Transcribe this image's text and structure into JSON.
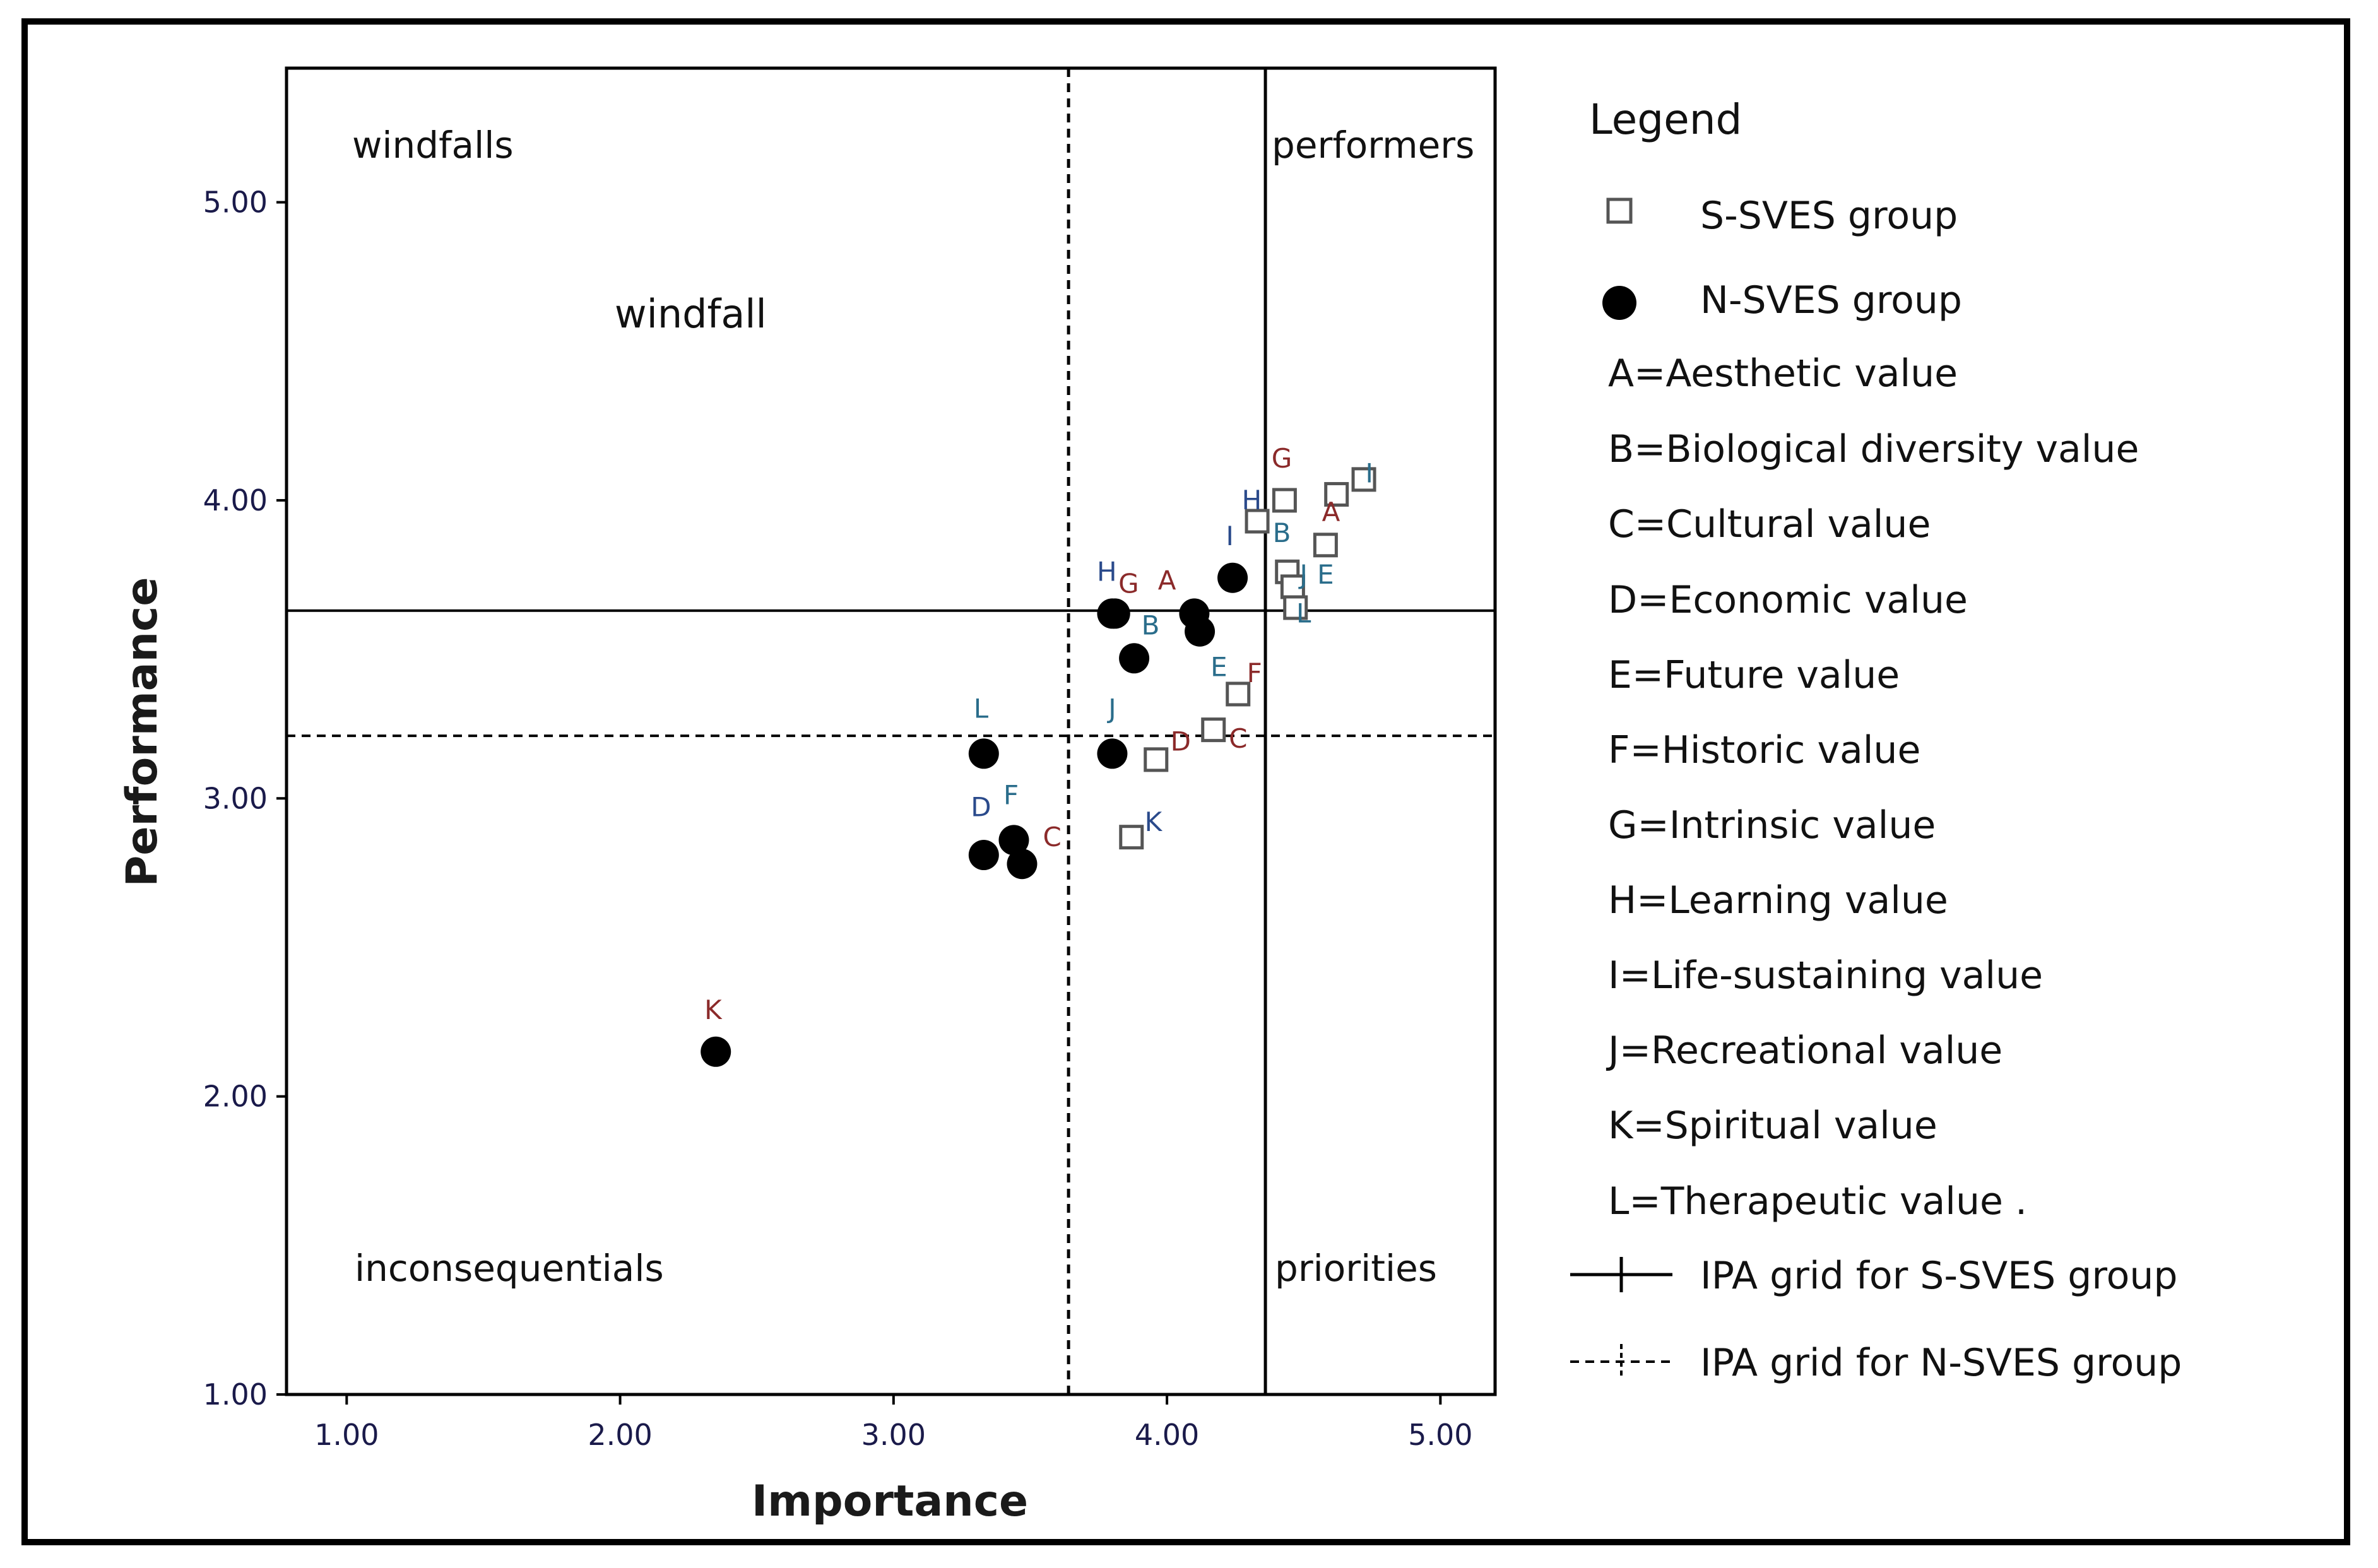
{
  "chart_data": {
    "type": "scatter",
    "title": "",
    "xlabel": "Importance",
    "ylabel": "Performance",
    "xlim": [
      0.78,
      5.2
    ],
    "ylim": [
      1.0,
      5.45
    ],
    "xticks": [
      1.0,
      2.0,
      3.0,
      4.0,
      5.0
    ],
    "yticks": [
      1.0,
      2.0,
      3.0,
      4.0,
      5.0
    ],
    "xtick_labels": [
      "1.00",
      "2.00",
      "3.00",
      "4.00",
      "5.00"
    ],
    "ytick_labels": [
      "1.00",
      "2.00",
      "3.00",
      "4.00",
      "5.00"
    ],
    "grid": false,
    "quadrant_labels": {
      "top_left": "windfalls",
      "top_right": "performers",
      "bottom_left": "inconsequentials",
      "bottom_right": "priorities"
    },
    "annotations": [
      {
        "text": "windfall",
        "x": 1.98,
        "y": 4.58
      }
    ],
    "reference_lines": [
      {
        "name": "IPA grid for S-SVES group",
        "style": "solid",
        "x": 4.36,
        "y": 3.63
      },
      {
        "name": "IPA grid for N-SVES group",
        "style": "dashed",
        "x": 3.64,
        "y": 3.21
      }
    ],
    "series": [
      {
        "name": "S-SVES group",
        "marker": "square",
        "points": [
          {
            "label": "A",
            "x": 4.62,
            "y": 4.02
          },
          {
            "label": "B",
            "x": 4.44,
            "y": 3.76
          },
          {
            "label": "C",
            "x": 4.17,
            "y": 3.23
          },
          {
            "label": "D",
            "x": 3.96,
            "y": 3.13
          },
          {
            "label": "E",
            "x": 4.58,
            "y": 3.85
          },
          {
            "label": "F",
            "x": 4.26,
            "y": 3.35
          },
          {
            "label": "G",
            "x": 4.43,
            "y": 4.0
          },
          {
            "label": "H",
            "x": 4.33,
            "y": 3.93
          },
          {
            "label": "I",
            "x": 4.72,
            "y": 4.07
          },
          {
            "label": "J",
            "x": 4.46,
            "y": 3.71
          },
          {
            "label": "K",
            "x": 3.87,
            "y": 2.87
          },
          {
            "label": "L",
            "x": 4.47,
            "y": 3.64
          }
        ]
      },
      {
        "name": "N-SVES group",
        "marker": "circle",
        "points": [
          {
            "label": "A",
            "x": 4.1,
            "y": 3.62
          },
          {
            "label": "B",
            "x": 3.88,
            "y": 3.47
          },
          {
            "label": "C",
            "x": 3.47,
            "y": 2.78
          },
          {
            "label": "D",
            "x": 3.33,
            "y": 2.81
          },
          {
            "label": "E",
            "x": 4.12,
            "y": 3.56
          },
          {
            "label": "F",
            "x": 3.44,
            "y": 2.86
          },
          {
            "label": "G",
            "x": 3.81,
            "y": 3.62
          },
          {
            "label": "H",
            "x": 3.8,
            "y": 3.62
          },
          {
            "label": "I",
            "x": 4.24,
            "y": 3.74
          },
          {
            "label": "J",
            "x": 3.8,
            "y": 3.15
          },
          {
            "label": "K",
            "x": 2.35,
            "y": 2.15
          },
          {
            "label": "L",
            "x": 3.33,
            "y": 3.15
          }
        ]
      }
    ],
    "point_labels": [
      {
        "text": "G",
        "x": 4.42,
        "y": 4.11,
        "color": "#8b2a2a"
      },
      {
        "text": "I",
        "x": 4.74,
        "y": 4.06,
        "color": "#2a6d8b"
      },
      {
        "text": "H",
        "x": 4.31,
        "y": 3.97,
        "color": "#2a4a8b"
      },
      {
        "text": "A",
        "x": 4.6,
        "y": 3.93,
        "color": "#8b2a2a"
      },
      {
        "text": "B",
        "x": 4.42,
        "y": 3.86,
        "color": "#2a6d8b"
      },
      {
        "text": "E",
        "x": 4.58,
        "y": 3.72,
        "color": "#2a6d8b"
      },
      {
        "text": "J",
        "x": 4.5,
        "y": 3.72,
        "color": "#2a6d8b"
      },
      {
        "text": "L",
        "x": 4.5,
        "y": 3.59,
        "color": "#2a6d8b"
      },
      {
        "text": "I",
        "x": 4.23,
        "y": 3.85,
        "color": "#2a4a8b"
      },
      {
        "text": "H",
        "x": 3.78,
        "y": 3.73,
        "color": "#2a4a8b"
      },
      {
        "text": "G",
        "x": 3.86,
        "y": 3.69,
        "color": "#8b2a2a"
      },
      {
        "text": "A",
        "x": 4.0,
        "y": 3.7,
        "color": "#8b2a2a"
      },
      {
        "text": "B",
        "x": 3.94,
        "y": 3.55,
        "color": "#2a6d8b"
      },
      {
        "text": "E",
        "x": 4.19,
        "y": 3.41,
        "color": "#2a6d8b"
      },
      {
        "text": "F",
        "x": 4.32,
        "y": 3.39,
        "color": "#8b2a2a"
      },
      {
        "text": "C",
        "x": 4.26,
        "y": 3.17,
        "color": "#8b2a2a"
      },
      {
        "text": "D",
        "x": 4.05,
        "y": 3.16,
        "color": "#8b2a2a"
      },
      {
        "text": "K",
        "x": 3.95,
        "y": 2.89,
        "color": "#2a4a8b"
      },
      {
        "text": "L",
        "x": 3.32,
        "y": 3.27,
        "color": "#2a6d8b"
      },
      {
        "text": "J",
        "x": 3.8,
        "y": 3.27,
        "color": "#2a6d8b"
      },
      {
        "text": "D",
        "x": 3.32,
        "y": 2.94,
        "color": "#2a4a8b"
      },
      {
        "text": "F",
        "x": 3.43,
        "y": 2.98,
        "color": "#2a6d8b"
      },
      {
        "text": "C",
        "x": 3.58,
        "y": 2.84,
        "color": "#8b2a2a"
      },
      {
        "text": "K",
        "x": 2.34,
        "y": 2.26,
        "color": "#8b2a2a"
      }
    ],
    "legend": {
      "title": "Legend",
      "placement": "right",
      "entries": [
        {
          "marker": "square",
          "text": "S-SVES group"
        },
        {
          "marker": "circle",
          "text": "N-SVES group"
        },
        {
          "marker": "none",
          "text": "A=Aesthetic value"
        },
        {
          "marker": "none",
          "text": "B=Biological diversity value"
        },
        {
          "marker": "none",
          "text": "C=Cultural value"
        },
        {
          "marker": "none",
          "text": "D=Economic value"
        },
        {
          "marker": "none",
          "text": "E=Future value"
        },
        {
          "marker": "none",
          "text": "F=Historic value"
        },
        {
          "marker": "none",
          "text": "G=Intrinsic value"
        },
        {
          "marker": "none",
          "text": "H=Learning value"
        },
        {
          "marker": "none",
          "text": "I=Life-sustaining value"
        },
        {
          "marker": "none",
          "text": "J=Recreational value"
        },
        {
          "marker": "none",
          "text": "K=Spiritual value"
        },
        {
          "marker": "none",
          "text": "L=Therapeutic value ."
        },
        {
          "marker": "solid-line",
          "text": "IPA grid for S-SVES group"
        },
        {
          "marker": "dashed-line",
          "text": "IPA grid for N-SVES group"
        }
      ]
    },
    "colors": {
      "axis": "#000000",
      "tick_label": "#1a1a4a",
      "square_stroke": "#555555",
      "circle_fill": "#000000"
    }
  }
}
